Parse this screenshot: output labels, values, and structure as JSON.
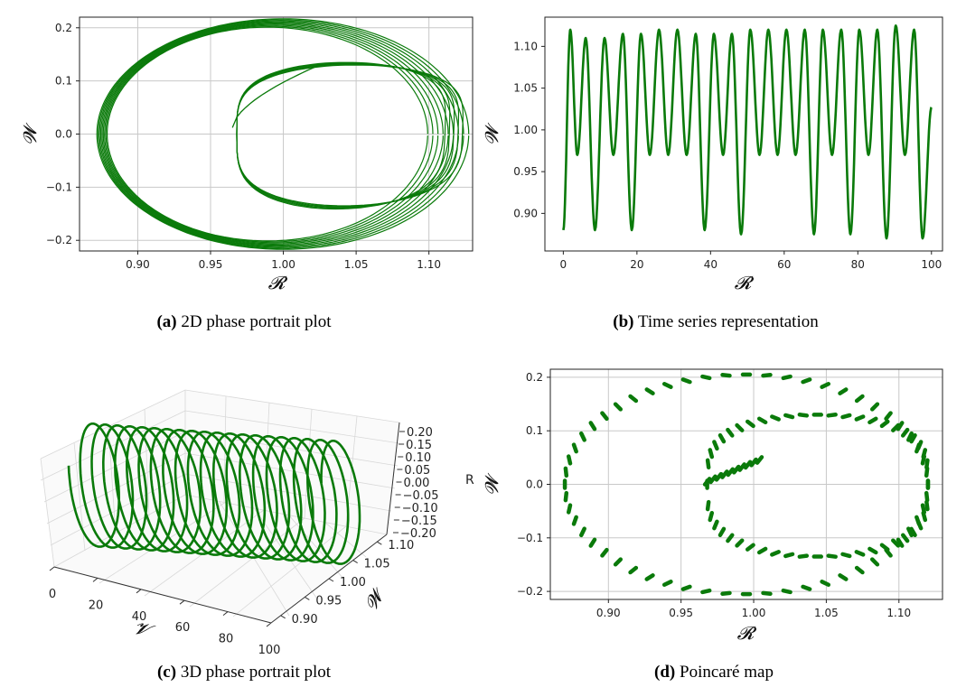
{
  "chart_data": [
    {
      "id": "a",
      "type": "line",
      "caption_label": "(a)",
      "caption_text": "2D phase portrait plot",
      "xlabel": "𝓡",
      "ylabel": "𝓦",
      "xlim": [
        0.86,
        1.13
      ],
      "ylim": [
        -0.22,
        0.22
      ],
      "xticks": [
        "0.90",
        "0.95",
        "1.00",
        "1.05",
        "1.10"
      ],
      "xtick_values": [
        0.9,
        0.95,
        1.0,
        1.05,
        1.1
      ],
      "yticks": [
        "−0.2",
        "−0.1",
        "0.0",
        "0.1",
        "0.2"
      ],
      "ytick_values": [
        -0.2,
        -0.1,
        0.0,
        0.1,
        0.2
      ],
      "grid": true,
      "color": "#0a7a0a",
      "series": [
        {
          "name": "trajectory",
          "outer_loop": {
            "center_r": 0.995,
            "radius_r": 0.12,
            "amplitude_w": 0.21,
            "cycles": 9
          },
          "inner_loop": {
            "start": [
              0.965,
              0.0
            ],
            "top_w": 0.135,
            "bottom_w": -0.13,
            "max_r": 1.12,
            "cycles": 5,
            "end": [
              1.025,
              0.13
            ]
          }
        }
      ]
    },
    {
      "id": "b",
      "type": "line",
      "caption_label": "(b)",
      "caption_text": "Time series representation",
      "xlabel": "𝓡",
      "ylabel": "𝓦",
      "xlim": [
        -5,
        103
      ],
      "ylim": [
        0.855,
        1.135
      ],
      "xticks": [
        "0",
        "20",
        "40",
        "60",
        "80",
        "100"
      ],
      "xtick_values": [
        0,
        20,
        40,
        60,
        80,
        100
      ],
      "yticks": [
        "0.90",
        "0.95",
        "1.00",
        "1.05",
        "1.10"
      ],
      "ytick_values": [
        0.9,
        0.95,
        1.0,
        1.05,
        1.1
      ],
      "grid": false,
      "color": "#0a7a0a",
      "series": [
        {
          "name": "time series",
          "t_start": 0,
          "t_end": 100,
          "start_value": 0.88,
          "end_value": 1.027,
          "peak_times": [
            1.9,
            6.1,
            11.2,
            16.2,
            21.1,
            26.0,
            31.0,
            36.0,
            40.9,
            45.8,
            50.8,
            55.7,
            60.6,
            65.6,
            70.5,
            75.5,
            80.4,
            85.3,
            90.3,
            95.3
          ],
          "peaks": [
            1.12,
            1.11,
            1.11,
            1.115,
            1.115,
            1.12,
            1.12,
            1.115,
            1.115,
            1.115,
            1.12,
            1.12,
            1.12,
            1.12,
            1.12,
            1.12,
            1.12,
            1.12,
            1.125,
            1.12
          ],
          "trough_times": [
            3.8,
            8.6,
            13.6,
            18.6,
            23.5,
            28.5,
            33.5,
            38.4,
            43.4,
            48.3,
            53.3,
            58.2,
            63.1,
            68.1,
            73.0,
            78.0,
            82.9,
            87.8,
            92.8,
            97.6
          ],
          "troughs": [
            0.97,
            0.88,
            0.97,
            0.88,
            0.97,
            0.97,
            0.97,
            0.88,
            0.97,
            0.875,
            0.97,
            0.97,
            0.97,
            0.875,
            0.97,
            0.875,
            0.97,
            0.87,
            0.97,
            0.87
          ],
          "upper_troughs": [
            0.97,
            0.965
          ]
        }
      ]
    },
    {
      "id": "c",
      "type": "line3d",
      "caption_label": "(c)",
      "caption_text": "3D phase portrait plot",
      "xlabel": "𝓥",
      "ylabel": "𝓦",
      "zlabel": "R",
      "xticks": [
        "0",
        "20",
        "40",
        "60",
        "80",
        "100"
      ],
      "xtick_values": [
        0,
        20,
        40,
        60,
        80,
        100
      ],
      "yticks": [
        "0.90",
        "0.95",
        "1.00",
        "1.05",
        "1.10"
      ],
      "ytick_values": [
        0.9,
        0.95,
        1.0,
        1.05,
        1.1
      ],
      "zticks": [
        "0.20",
        "0.15",
        "0.10",
        "0.05",
        "0.00",
        "−0.05",
        "−0.10",
        "−0.15",
        "−0.20"
      ],
      "ztick_values": [
        0.2,
        0.15,
        0.1,
        0.05,
        0.0,
        -0.05,
        -0.1,
        -0.15,
        -0.2
      ],
      "color": "#0a7a0a",
      "series": [
        {
          "name": "helix",
          "turns": 20,
          "t_range": [
            0,
            100
          ]
        }
      ]
    },
    {
      "id": "d",
      "type": "scatter",
      "caption_label": "(d)",
      "caption_text": "Poincaré map",
      "xlabel": "𝓡",
      "ylabel": "𝓦",
      "xlim": [
        0.86,
        1.13
      ],
      "ylim": [
        -0.215,
        0.215
      ],
      "xticks": [
        "0.90",
        "0.95",
        "1.00",
        "1.05",
        "1.10"
      ],
      "xtick_values": [
        0.9,
        0.95,
        1.0,
        1.05,
        1.1
      ],
      "yticks": [
        "−0.2",
        "−0.1",
        "0.0",
        "0.1",
        "0.2"
      ],
      "ytick_values": [
        -0.2,
        -0.1,
        0.0,
        0.1,
        0.2
      ],
      "grid": true,
      "color": "#0a7a0a",
      "series": [
        {
          "name": "section points",
          "outer_count": 56,
          "inner_count": 48,
          "inner_start": [
            0.968,
            0.0
          ]
        }
      ]
    }
  ]
}
